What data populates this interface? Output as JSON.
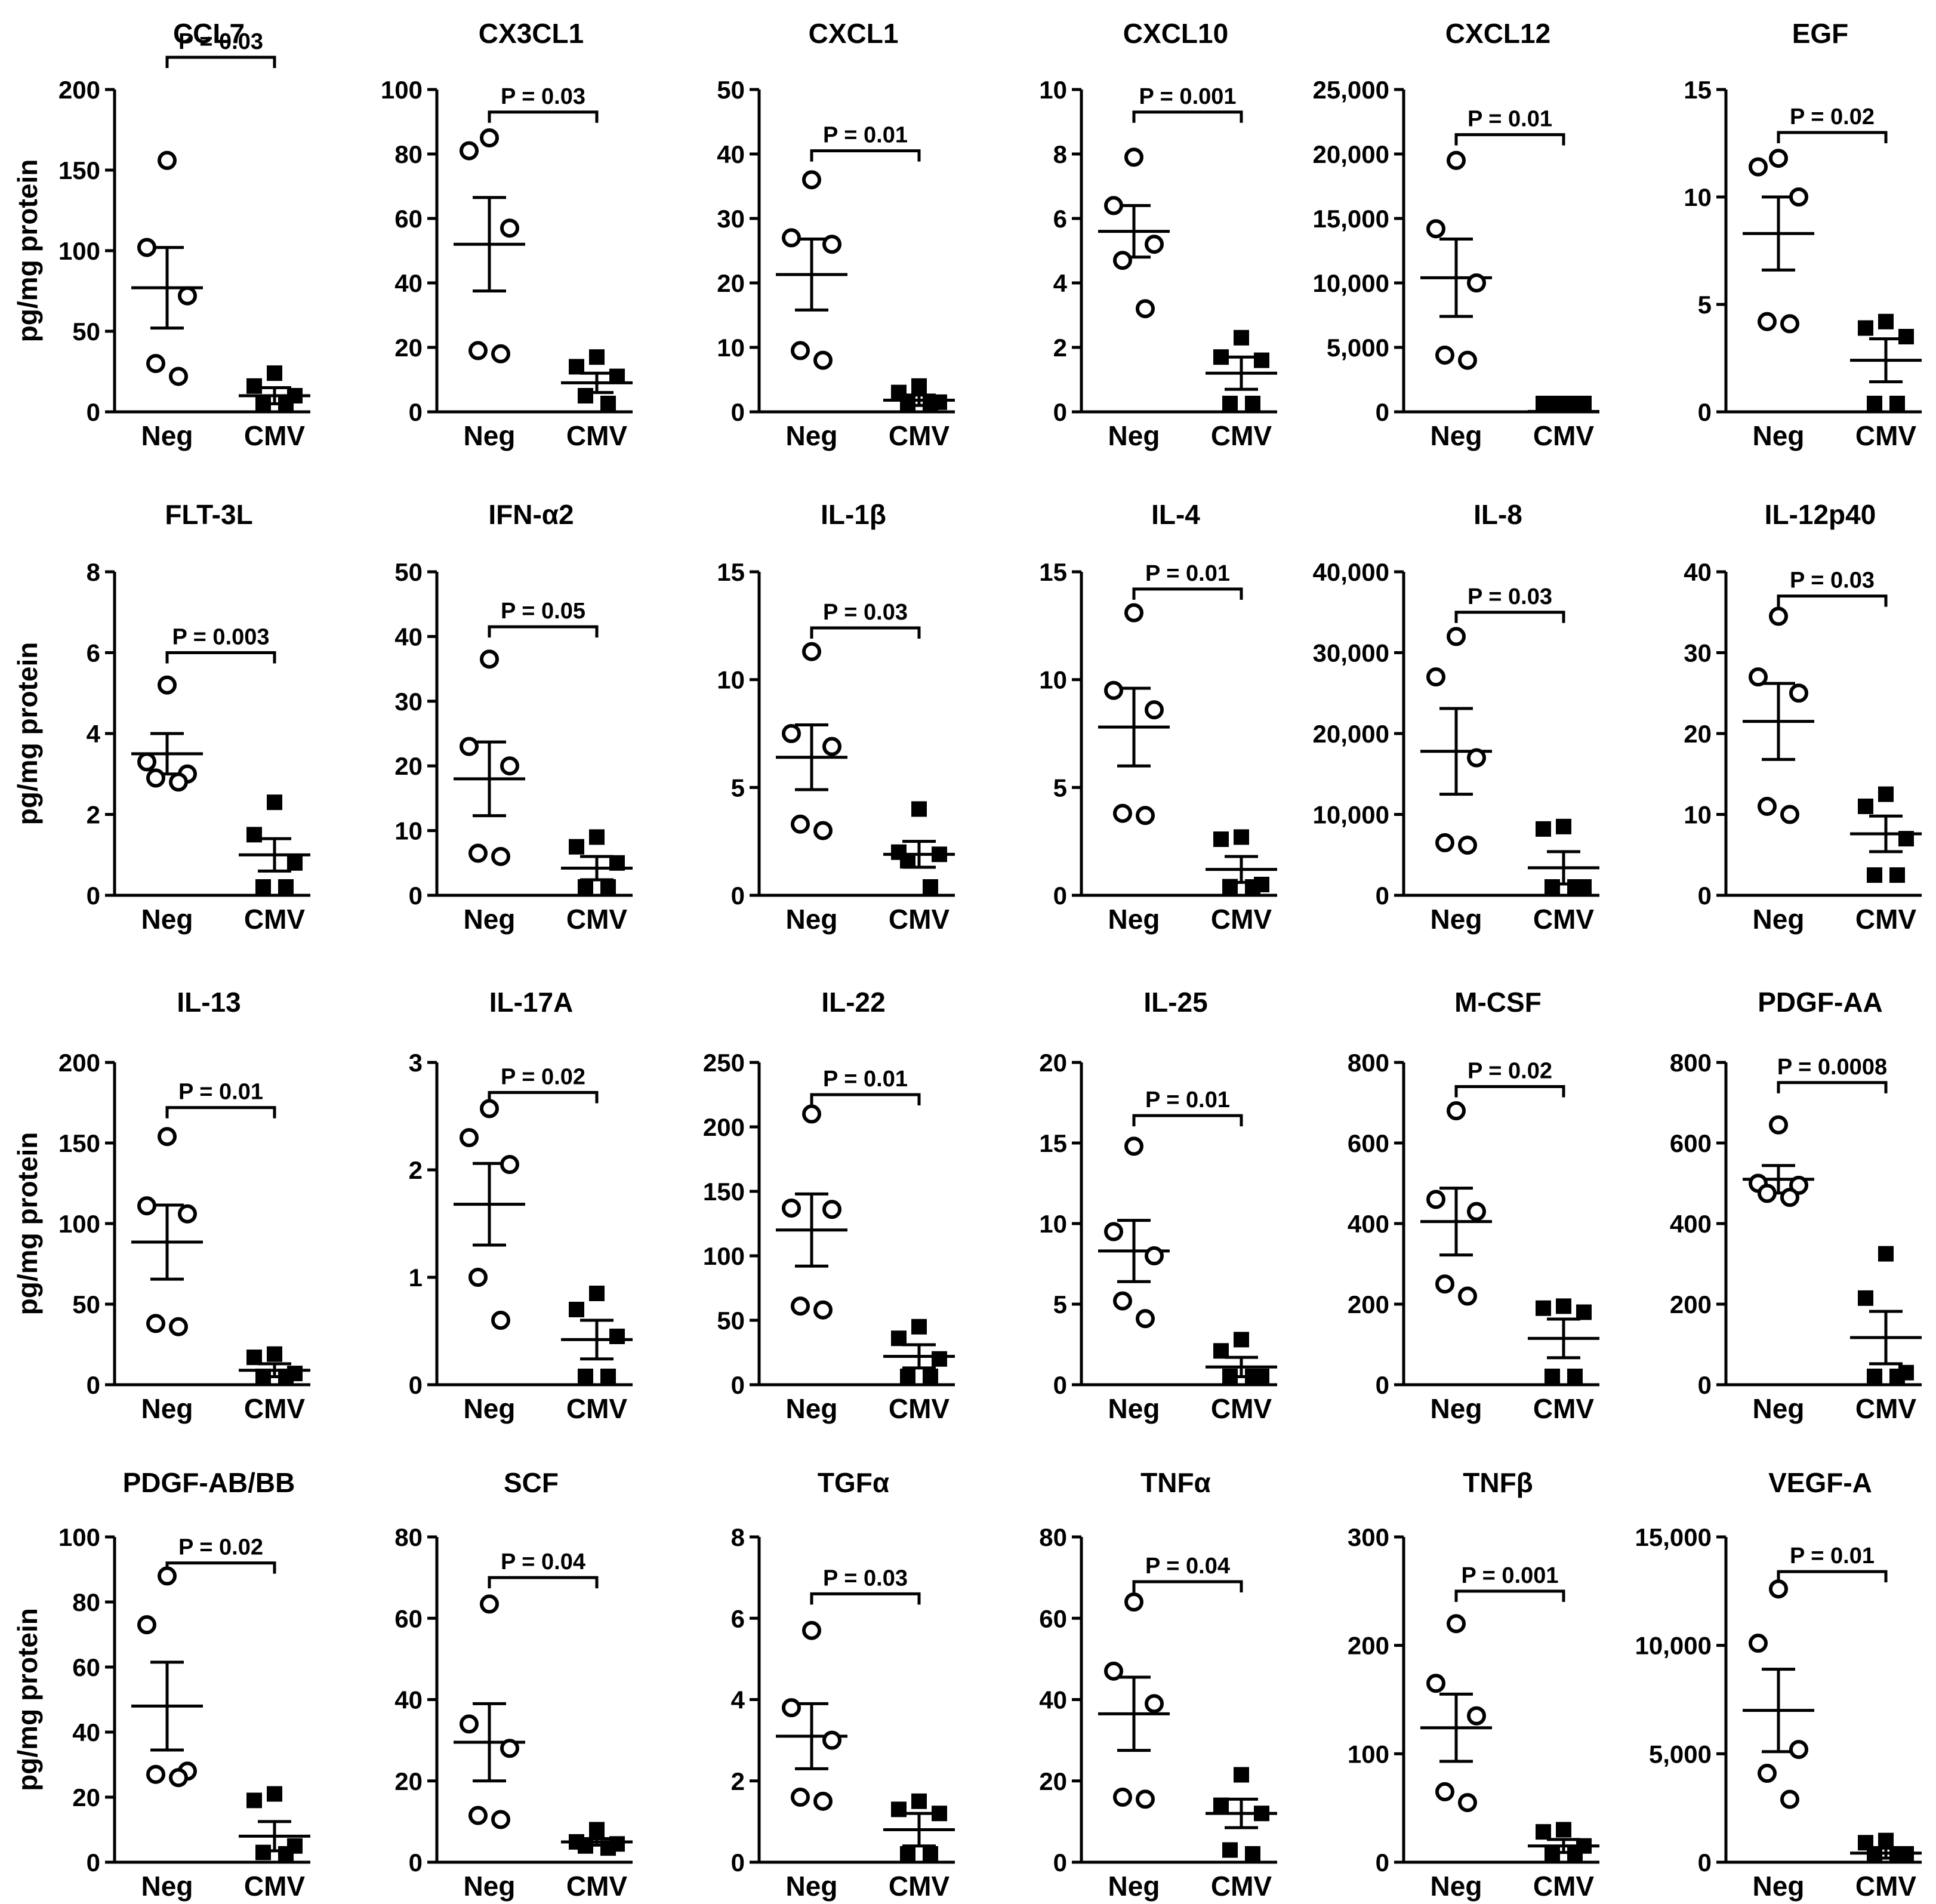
{
  "y_axis_label": "pg/mg protein",
  "chart_data": [
    {
      "type": "scatter",
      "title": "CCL7",
      "categories": [
        "Neg",
        "CMV"
      ],
      "ylim": [
        0,
        200
      ],
      "ticks": [
        0,
        50,
        100,
        150,
        200
      ],
      "tick_labels": [
        "0",
        "50",
        "100",
        "150",
        "200"
      ],
      "series": [
        {
          "values": [
            156,
            102,
            72,
            30,
            22
          ],
          "mean": 77,
          "sem": 25
        },
        {
          "values": [
            24,
            16,
            10,
            5,
            4
          ],
          "mean": 10,
          "sem": 5
        }
      ],
      "p_label": "P = 0.03",
      "p_value": 0.03,
      "p_bracket_y": 220
    },
    {
      "type": "scatter",
      "title": "CX3CL1",
      "categories": [
        "Neg",
        "CMV"
      ],
      "ylim": [
        0,
        100
      ],
      "ticks": [
        0,
        20,
        40,
        60,
        80,
        100
      ],
      "tick_labels": [
        "0",
        "20",
        "40",
        "60",
        "80",
        "100"
      ],
      "series": [
        {
          "values": [
            85,
            81,
            57,
            19,
            18
          ],
          "mean": 52,
          "sem": 14.5
        },
        {
          "values": [
            17,
            14,
            11,
            5,
            1
          ],
          "mean": 9,
          "sem": 3
        }
      ],
      "p_label": "P = 0.03",
      "p_value": 0.03,
      "p_bracket_y": 93
    },
    {
      "type": "scatter",
      "title": "CXCL1",
      "categories": [
        "Neg",
        "CMV"
      ],
      "ylim": [
        0,
        50
      ],
      "ticks": [
        0,
        10,
        20,
        30,
        40,
        50
      ],
      "tick_labels": [
        "0",
        "10",
        "20",
        "30",
        "40",
        "50"
      ],
      "series": [
        {
          "values": [
            36,
            27,
            26,
            9.5,
            8
          ],
          "mean": 21.3,
          "sem": 5.5
        },
        {
          "values": [
            4,
            3,
            1.5,
            0.5,
            0.2
          ],
          "mean": 1.8,
          "sem": 0.8
        }
      ],
      "p_label": "P = 0.01",
      "p_value": 0.01,
      "p_bracket_y": 40.5
    },
    {
      "type": "scatter",
      "title": "CXCL10",
      "categories": [
        "Neg",
        "CMV"
      ],
      "ylim": [
        0,
        10
      ],
      "ticks": [
        0,
        2,
        4,
        6,
        8,
        10
      ],
      "tick_labels": [
        "0",
        "2",
        "4",
        "6",
        "8",
        "10"
      ],
      "series": [
        {
          "values": [
            7.9,
            6.4,
            5.2,
            4.7,
            3.2
          ],
          "mean": 5.6,
          "sem": 0.8
        },
        {
          "values": [
            2.3,
            1.7,
            1.6,
            0.1,
            0.1
          ],
          "mean": 1.2,
          "sem": 0.5
        }
      ],
      "p_label": "P = 0.001",
      "p_value": 0.001,
      "p_bracket_y": 9.3
    },
    {
      "type": "scatter",
      "title": "CXCL12",
      "categories": [
        "Neg",
        "CMV"
      ],
      "ylim": [
        0,
        25000
      ],
      "ticks": [
        0,
        5000,
        10000,
        15000,
        20000,
        25000
      ],
      "tick_labels": [
        "0",
        "5,000",
        "10,000",
        "15,000",
        "20,000",
        "25,000"
      ],
      "series": [
        {
          "values": [
            19500,
            14200,
            10000,
            4400,
            4000
          ],
          "mean": 10400,
          "sem": 3000
        },
        {
          "values": [
            50,
            40,
            30,
            20,
            10
          ],
          "mean": 30,
          "sem": 10
        }
      ],
      "p_label": "P = 0.01",
      "p_value": 0.01,
      "p_bracket_y": 21500
    },
    {
      "type": "scatter",
      "title": "EGF",
      "categories": [
        "Neg",
        "CMV"
      ],
      "ylim": [
        0,
        15
      ],
      "ticks": [
        0,
        5,
        10,
        15
      ],
      "tick_labels": [
        "0",
        "5",
        "10",
        "15"
      ],
      "series": [
        {
          "values": [
            11.8,
            11.4,
            10.0,
            4.2,
            4.1
          ],
          "mean": 8.3,
          "sem": 1.7
        },
        {
          "values": [
            4.2,
            3.9,
            3.5,
            0.1,
            0.1
          ],
          "mean": 2.4,
          "sem": 1.0
        }
      ],
      "p_label": "P = 0.02",
      "p_value": 0.02,
      "p_bracket_y": 13.0
    },
    {
      "type": "scatter",
      "title": "FLT-3L",
      "categories": [
        "Neg",
        "CMV"
      ],
      "ylim": [
        0,
        8
      ],
      "ticks": [
        0,
        2,
        4,
        6,
        8
      ],
      "tick_labels": [
        "0",
        "2",
        "4",
        "6",
        "8"
      ],
      "series": [
        {
          "values": [
            5.2,
            3.3,
            3.0,
            2.9,
            2.8
          ],
          "mean": 3.5,
          "sem": 0.5
        },
        {
          "values": [
            2.3,
            1.5,
            0.8,
            0.2,
            0.2
          ],
          "mean": 1.0,
          "sem": 0.4
        }
      ],
      "p_label": "P = 0.003",
      "p_value": 0.003,
      "p_bracket_y": 6.0
    },
    {
      "type": "scatter",
      "title": "IFN-α2",
      "categories": [
        "Neg",
        "CMV"
      ],
      "ylim": [
        0,
        50
      ],
      "ticks": [
        0,
        10,
        20,
        30,
        40,
        50
      ],
      "tick_labels": [
        "0",
        "10",
        "20",
        "30",
        "40",
        "50"
      ],
      "series": [
        {
          "values": [
            36.5,
            23,
            20,
            6.5,
            6
          ],
          "mean": 18,
          "sem": 5.7
        },
        {
          "values": [
            9,
            7.5,
            5,
            1,
            0.5
          ],
          "mean": 4.2,
          "sem": 1.8
        }
      ],
      "p_label": "P = 0.05",
      "p_value": 0.05,
      "p_bracket_y": 41.5
    },
    {
      "type": "scatter",
      "title": "IL-1β",
      "categories": [
        "Neg",
        "CMV"
      ],
      "ylim": [
        0,
        15
      ],
      "ticks": [
        0,
        5,
        10,
        15
      ],
      "tick_labels": [
        "0",
        "5",
        "10",
        "15"
      ],
      "series": [
        {
          "values": [
            11.3,
            7.5,
            6.9,
            3.3,
            3.0
          ],
          "mean": 6.4,
          "sem": 1.5
        },
        {
          "values": [
            4.0,
            2.0,
            1.9,
            1.6,
            0.3
          ],
          "mean": 1.9,
          "sem": 0.6
        }
      ],
      "p_label": "P = 0.03",
      "p_value": 0.03,
      "p_bracket_y": 12.4
    },
    {
      "type": "scatter",
      "title": "IL-4",
      "categories": [
        "Neg",
        "CMV"
      ],
      "ylim": [
        0,
        15
      ],
      "ticks": [
        0,
        5,
        10,
        15
      ],
      "tick_labels": [
        "0",
        "5",
        "10",
        "15"
      ],
      "series": [
        {
          "values": [
            13.1,
            9.5,
            8.6,
            3.8,
            3.7
          ],
          "mean": 7.8,
          "sem": 1.8
        },
        {
          "values": [
            2.7,
            2.6,
            0.5,
            0.4,
            0.3
          ],
          "mean": 1.2,
          "sem": 0.6
        }
      ],
      "p_label": "P = 0.01",
      "p_value": 0.01,
      "p_bracket_y": 14.2
    },
    {
      "type": "scatter",
      "title": "IL-8",
      "categories": [
        "Neg",
        "CMV"
      ],
      "ylim": [
        0,
        40000
      ],
      "ticks": [
        0,
        10000,
        20000,
        30000,
        40000
      ],
      "tick_labels": [
        "0",
        "10,000",
        "20,000",
        "30,000",
        "40,000"
      ],
      "series": [
        {
          "values": [
            32000,
            27000,
            17000,
            6500,
            6200
          ],
          "mean": 17800,
          "sem": 5300
        },
        {
          "values": [
            8500,
            8200,
            500,
            400,
            300
          ],
          "mean": 3400,
          "sem": 2000
        }
      ],
      "p_label": "P = 0.03",
      "p_value": 0.03,
      "p_bracket_y": 35000
    },
    {
      "type": "scatter",
      "title": "IL-12p40",
      "categories": [
        "Neg",
        "CMV"
      ],
      "ylim": [
        0,
        40
      ],
      "ticks": [
        0,
        10,
        20,
        30,
        40
      ],
      "tick_labels": [
        "0",
        "10",
        "20",
        "30",
        "40"
      ],
      "series": [
        {
          "values": [
            34.5,
            27,
            25,
            11,
            10
          ],
          "mean": 21.5,
          "sem": 4.7
        },
        {
          "values": [
            12.5,
            11,
            7,
            2.5,
            2.5
          ],
          "mean": 7.6,
          "sem": 2.2
        }
      ],
      "p_label": "P = 0.03",
      "p_value": 0.03,
      "p_bracket_y": 37
    },
    {
      "type": "scatter",
      "title": "IL-13",
      "categories": [
        "Neg",
        "CMV"
      ],
      "ylim": [
        0,
        200
      ],
      "ticks": [
        0,
        50,
        100,
        150,
        200
      ],
      "tick_labels": [
        "0",
        "50",
        "100",
        "150",
        "200"
      ],
      "series": [
        {
          "values": [
            154,
            111,
            106,
            38,
            36
          ],
          "mean": 88.5,
          "sem": 23
        },
        {
          "values": [
            19,
            17,
            7,
            2,
            2
          ],
          "mean": 9,
          "sem": 4
        }
      ],
      "p_label": "P = 0.01",
      "p_value": 0.01,
      "p_bracket_y": 172
    },
    {
      "type": "scatter",
      "title": "IL-17A",
      "categories": [
        "Neg",
        "CMV"
      ],
      "ylim": [
        0,
        3
      ],
      "ticks": [
        0,
        1,
        2,
        3
      ],
      "tick_labels": [
        "0",
        "1",
        "2",
        "3"
      ],
      "series": [
        {
          "values": [
            2.57,
            2.3,
            2.05,
            1.0,
            0.6
          ],
          "mean": 1.68,
          "sem": 0.38
        },
        {
          "values": [
            0.85,
            0.7,
            0.45,
            0.05,
            0.03
          ],
          "mean": 0.42,
          "sem": 0.18
        }
      ],
      "p_label": "P = 0.02",
      "p_value": 0.02,
      "p_bracket_y": 2.72
    },
    {
      "type": "scatter",
      "title": "IL-22",
      "categories": [
        "Neg",
        "CMV"
      ],
      "ylim": [
        0,
        250
      ],
      "ticks": [
        0,
        50,
        100,
        150,
        200,
        250
      ],
      "tick_labels": [
        "0",
        "50",
        "100",
        "150",
        "200",
        "250"
      ],
      "series": [
        {
          "values": [
            210,
            137,
            136,
            61,
            58
          ],
          "mean": 120,
          "sem": 28
        },
        {
          "values": [
            45,
            36,
            20,
            5,
            3
          ],
          "mean": 22,
          "sem": 9
        }
      ],
      "p_label": "P = 0.01",
      "p_value": 0.01,
      "p_bracket_y": 225
    },
    {
      "type": "scatter",
      "title": "IL-25",
      "categories": [
        "Neg",
        "CMV"
      ],
      "ylim": [
        0,
        20
      ],
      "ticks": [
        0,
        5,
        10,
        15,
        20
      ],
      "tick_labels": [
        "0",
        "5",
        "10",
        "15",
        "20"
      ],
      "series": [
        {
          "values": [
            14.8,
            9.5,
            8.0,
            5.2,
            4.1
          ],
          "mean": 8.3,
          "sem": 1.9
        },
        {
          "values": [
            2.8,
            2.1,
            0.3,
            0.2,
            0.2
          ],
          "mean": 1.1,
          "sem": 0.6
        }
      ],
      "p_label": "P = 0.01",
      "p_value": 0.01,
      "p_bracket_y": 16.7
    },
    {
      "type": "scatter",
      "title": "M-CSF",
      "categories": [
        "Neg",
        "CMV"
      ],
      "ylim": [
        0,
        800
      ],
      "ticks": [
        0,
        200,
        400,
        600,
        800
      ],
      "tick_labels": [
        "0",
        "200",
        "400",
        "600",
        "800"
      ],
      "series": [
        {
          "values": [
            680,
            460,
            430,
            250,
            220
          ],
          "mean": 405,
          "sem": 83
        },
        {
          "values": [
            195,
            190,
            180,
            10,
            5
          ],
          "mean": 115,
          "sem": 48
        }
      ],
      "p_label": "P = 0.02",
      "p_value": 0.02,
      "p_bracket_y": 740
    },
    {
      "type": "scatter",
      "title": "PDGF-AA",
      "categories": [
        "Neg",
        "CMV"
      ],
      "ylim": [
        0,
        800
      ],
      "ticks": [
        0,
        200,
        400,
        600,
        800
      ],
      "tick_labels": [
        "0",
        "200",
        "400",
        "600",
        "800"
      ],
      "series": [
        {
          "values": [
            645,
            500,
            495,
            475,
            465
          ],
          "mean": 510,
          "sem": 34
        },
        {
          "values": [
            325,
            215,
            30,
            10,
            5
          ],
          "mean": 117,
          "sem": 65
        }
      ],
      "p_label": "P = 0.0008",
      "p_value": 0.0008,
      "p_bracket_y": 750
    },
    {
      "type": "scatter",
      "title": "PDGF-AB/BB",
      "categories": [
        "Neg",
        "CMV"
      ],
      "ylim": [
        0,
        100
      ],
      "ticks": [
        0,
        20,
        40,
        60,
        80,
        100
      ],
      "tick_labels": [
        "0",
        "20",
        "40",
        "60",
        "80",
        "100"
      ],
      "series": [
        {
          "values": [
            88,
            73,
            28,
            27,
            26
          ],
          "mean": 48,
          "sem": 13.5
        },
        {
          "values": [
            21,
            19,
            5,
            3,
            2
          ],
          "mean": 8,
          "sem": 4.5
        }
      ],
      "p_label": "P = 0.02",
      "p_value": 0.02,
      "p_bracket_y": 92
    },
    {
      "type": "scatter",
      "title": "SCF",
      "categories": [
        "Neg",
        "CMV"
      ],
      "ylim": [
        0,
        80
      ],
      "ticks": [
        0,
        20,
        40,
        60,
        80
      ],
      "tick_labels": [
        "0",
        "20",
        "40",
        "60",
        "80"
      ],
      "series": [
        {
          "values": [
            63.5,
            34,
            28,
            11.5,
            10.5
          ],
          "mean": 29.5,
          "sem": 9.5
        },
        {
          "values": [
            8,
            5,
            4.5,
            4,
            3.5
          ],
          "mean": 5,
          "sem": 0.8
        }
      ],
      "p_label": "P = 0.04",
      "p_value": 0.04,
      "p_bracket_y": 70
    },
    {
      "type": "scatter",
      "title": "TGFα",
      "categories": [
        "Neg",
        "CMV"
      ],
      "ylim": [
        0,
        8
      ],
      "ticks": [
        0,
        2,
        4,
        6,
        8
      ],
      "tick_labels": [
        "0",
        "2",
        "4",
        "6",
        "8"
      ],
      "series": [
        {
          "values": [
            5.7,
            3.8,
            3.0,
            1.6,
            1.5
          ],
          "mean": 3.1,
          "sem": 0.8
        },
        {
          "values": [
            1.5,
            1.3,
            1.2,
            0.1,
            0.1
          ],
          "mean": 0.8,
          "sem": 0.4
        }
      ],
      "p_label": "P = 0.03",
      "p_value": 0.03,
      "p_bracket_y": 6.6
    },
    {
      "type": "scatter",
      "title": "TNFα",
      "categories": [
        "Neg",
        "CMV"
      ],
      "ylim": [
        0,
        80
      ],
      "ticks": [
        0,
        20,
        40,
        60,
        80
      ],
      "tick_labels": [
        "0",
        "20",
        "40",
        "60",
        "80"
      ],
      "series": [
        {
          "values": [
            64,
            47,
            39,
            16,
            15.5
          ],
          "mean": 36.5,
          "sem": 9
        },
        {
          "values": [
            21.5,
            14,
            12,
            3,
            2
          ],
          "mean": 12,
          "sem": 3.5
        }
      ],
      "p_label": "P = 0.04",
      "p_value": 0.04,
      "p_bracket_y": 69
    },
    {
      "type": "scatter",
      "title": "TNFβ",
      "categories": [
        "Neg",
        "CMV"
      ],
      "ylim": [
        0,
        300
      ],
      "ticks": [
        0,
        100,
        200,
        300
      ],
      "tick_labels": [
        "0",
        "100",
        "200",
        "300"
      ],
      "series": [
        {
          "values": [
            220,
            165,
            135,
            65,
            55
          ],
          "mean": 124,
          "sem": 31
        },
        {
          "values": [
            30,
            28,
            15,
            3,
            2
          ],
          "mean": 15,
          "sem": 6
        }
      ],
      "p_label": "P = 0.001",
      "p_value": 0.001,
      "p_bracket_y": 250
    },
    {
      "type": "scatter",
      "title": "VEGF-A",
      "categories": [
        "Neg",
        "CMV"
      ],
      "ylim": [
        0,
        15000
      ],
      "ticks": [
        0,
        5000,
        10000,
        15000
      ],
      "tick_labels": [
        "0",
        "5,000",
        "10,000",
        "15,000"
      ],
      "series": [
        {
          "values": [
            12600,
            10100,
            5200,
            4100,
            2900
          ],
          "mean": 7000,
          "sem": 1900
        },
        {
          "values": [
            1000,
            900,
            100,
            50,
            30
          ],
          "mean": 420,
          "sem": 230
        }
      ],
      "p_label": "P = 0.01",
      "p_value": 0.01,
      "p_bracket_y": 13400
    }
  ]
}
